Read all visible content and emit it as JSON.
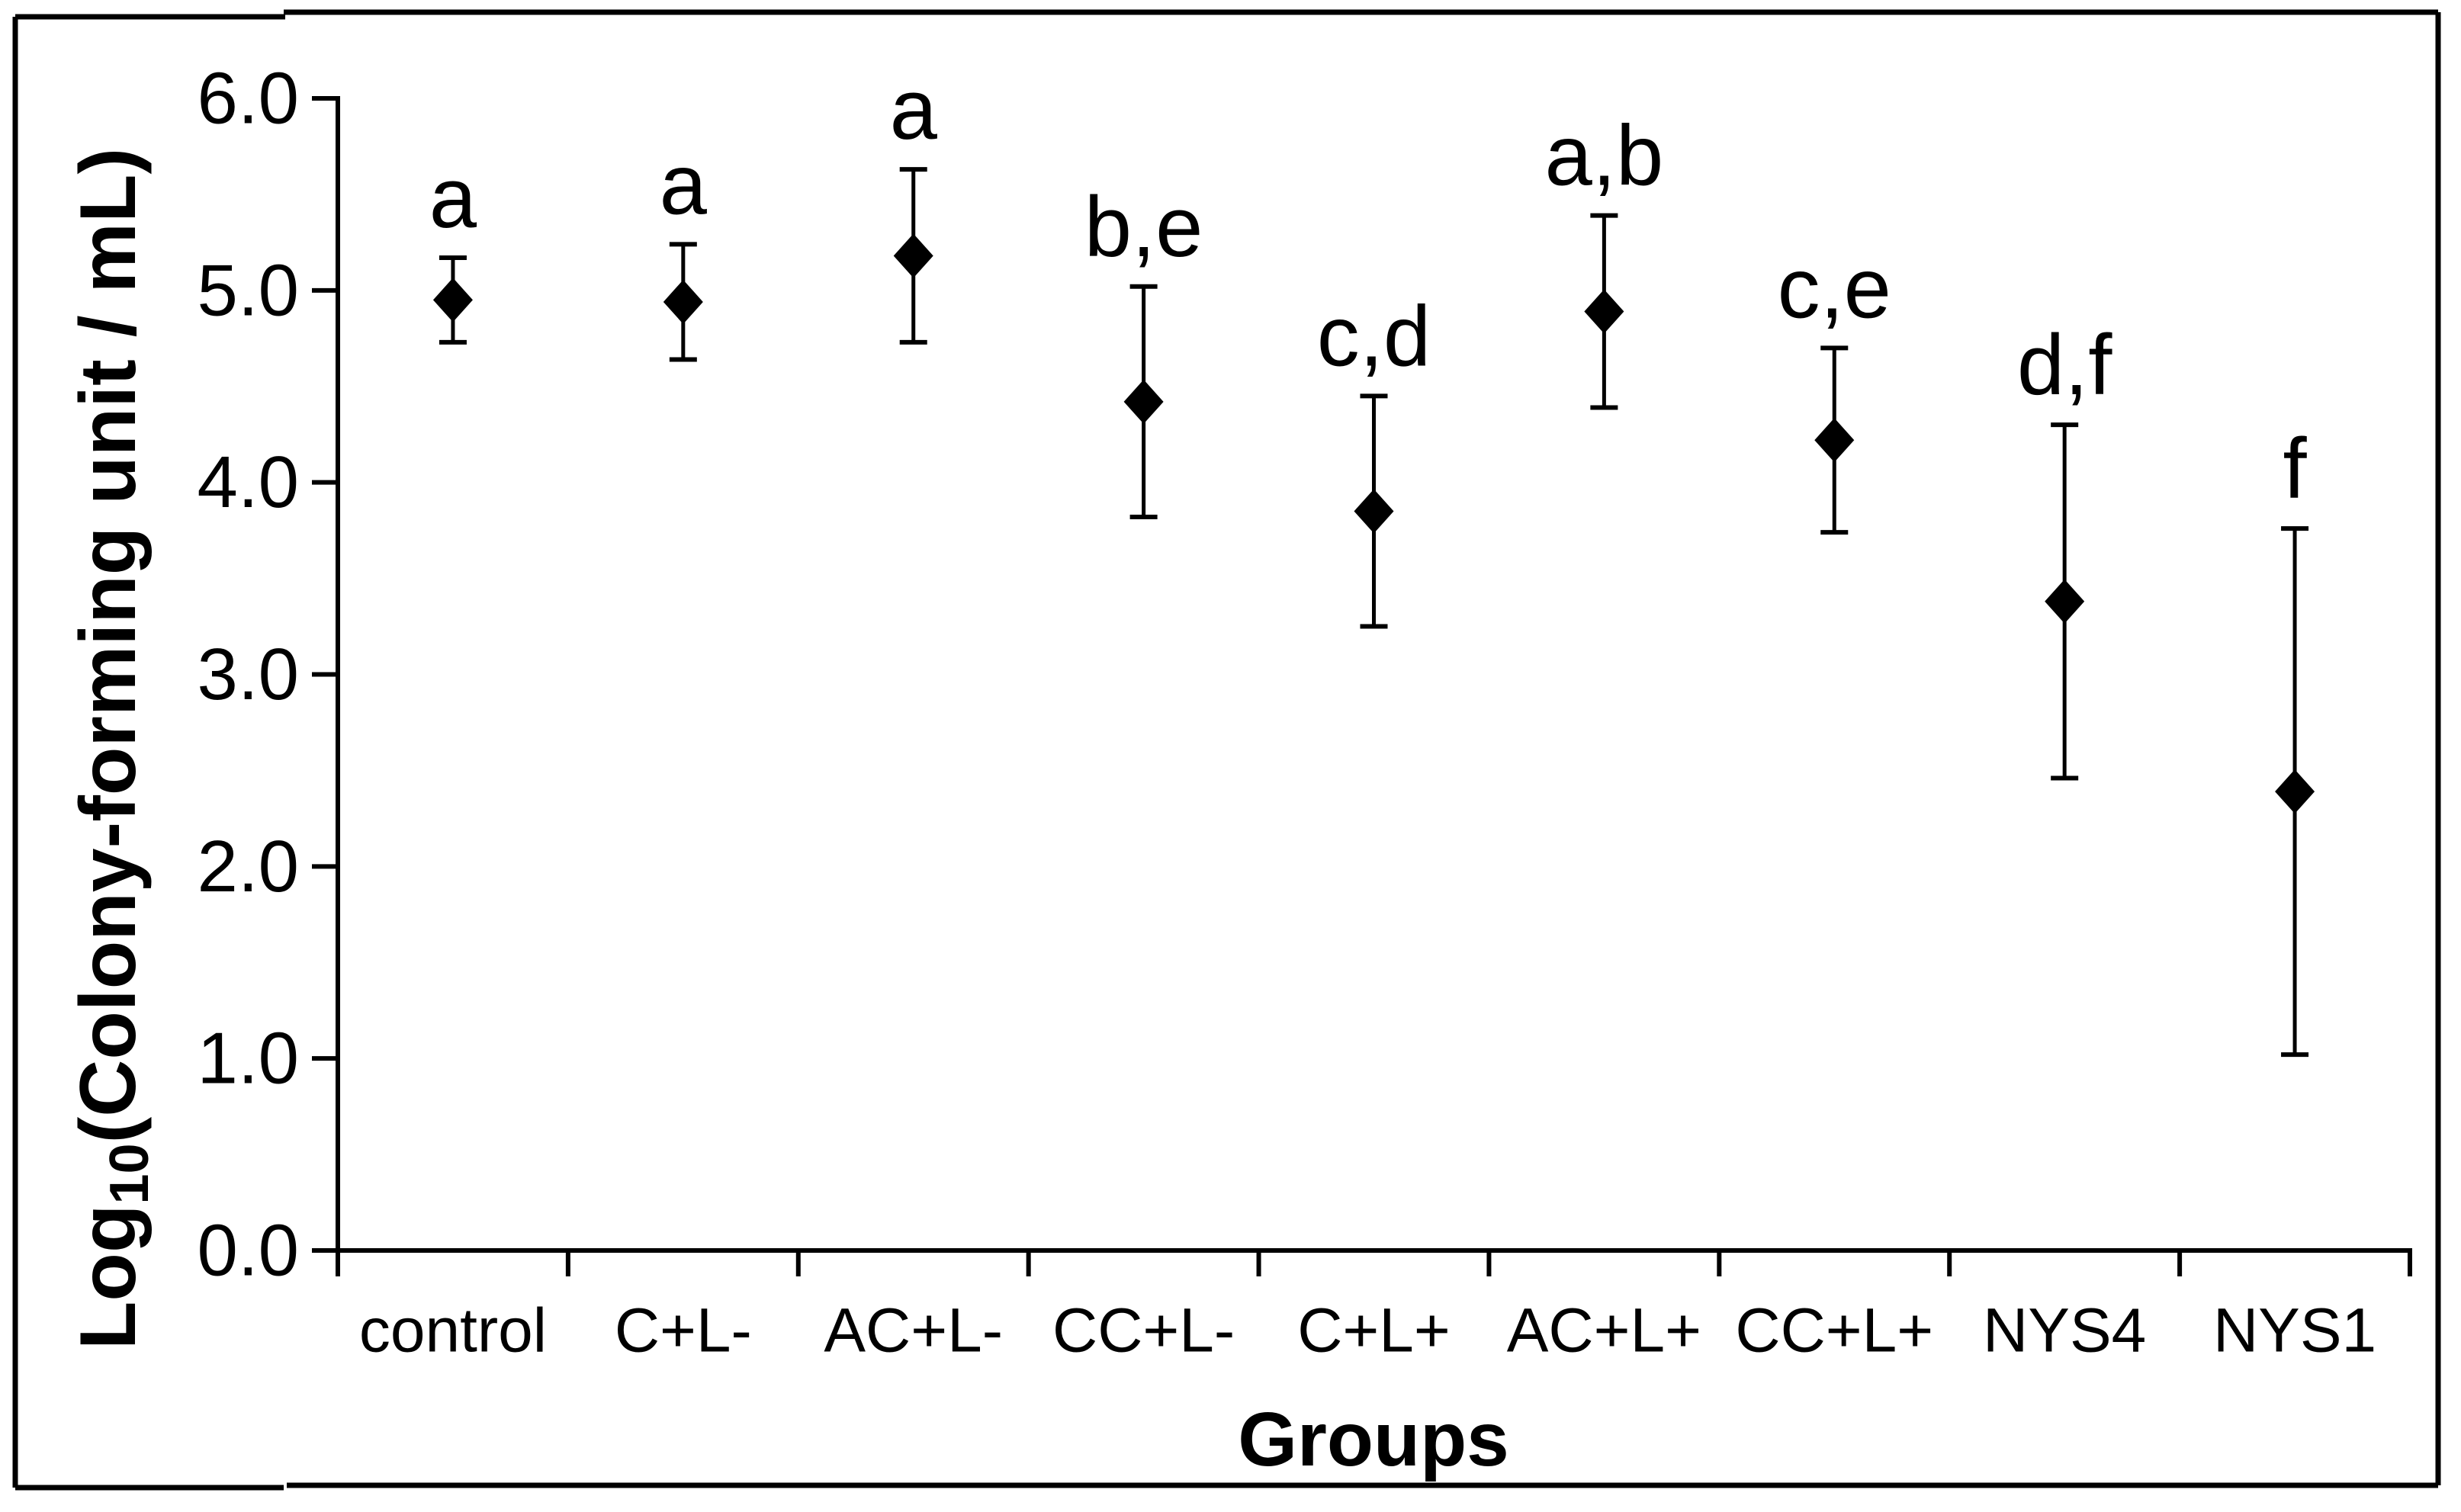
{
  "figure": {
    "background": "#ffffff",
    "frame_color": "#000000",
    "ink_color": "#000000"
  },
  "chart_data": {
    "type": "scatter",
    "title": "",
    "xlabel": "Groups",
    "ylabel": "Log10(Colony-forming unit / mL)",
    "ylabel_parts": {
      "prefix": "Log",
      "subscript": "10",
      "suffix": "(Colony-forming unit / mL)"
    },
    "ylim": [
      0.0,
      6.0
    ],
    "ytick_values": [
      0,
      1,
      2,
      3,
      4,
      5,
      6
    ],
    "ytick_labels": [
      "0.0",
      "1.0",
      "2.0",
      "3.0",
      "4.0",
      "5.0",
      "6.0"
    ],
    "grid": false,
    "legend_position": "none",
    "marker": "filled-diamond",
    "marker_color": "#000000",
    "categories": [
      "control",
      "C+L-",
      "AC+L-",
      "CC+L-",
      "C+L+",
      "AC+L+",
      "CC+L+",
      "NYS4",
      "NYS1"
    ],
    "series": [
      {
        "name": "Log10(Colony-forming unit / mL)",
        "values": [
          4.95,
          4.94,
          5.18,
          4.42,
          3.85,
          4.89,
          4.22,
          3.38,
          2.39
        ],
        "error_upper": [
          5.17,
          5.24,
          5.63,
          5.02,
          4.45,
          5.39,
          4.7,
          4.3,
          3.76
        ],
        "error_lower": [
          4.73,
          4.64,
          4.73,
          3.82,
          3.25,
          4.39,
          3.74,
          2.46,
          1.02
        ],
        "point_labels": [
          "a",
          "a",
          "a",
          "b,e",
          "c,d",
          "a,b",
          "c,e",
          "d,f",
          "f"
        ]
      }
    ]
  }
}
